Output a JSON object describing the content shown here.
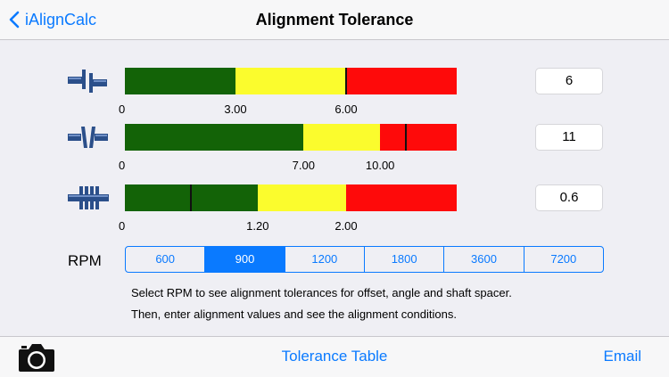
{
  "nav": {
    "back_label": "iAlignCalc",
    "title": "Alignment Tolerance"
  },
  "rows": [
    {
      "icon": "offset-coupling-icon",
      "min": 0,
      "max": 9.0,
      "thresholds": [
        3.0,
        6.0
      ],
      "tick_labels": [
        "0",
        "3.00",
        "6.00"
      ],
      "value": "6",
      "marker": 6
    },
    {
      "icon": "angle-coupling-icon",
      "min": 0,
      "max": 13.0,
      "thresholds": [
        7.0,
        10.0
      ],
      "tick_labels": [
        "0",
        "7.00",
        "10.00"
      ],
      "value": "11",
      "marker": 11
    },
    {
      "icon": "shaft-spacer-icon",
      "min": 0,
      "max": 3.0,
      "thresholds": [
        1.2,
        2.0
      ],
      "tick_labels": [
        "0",
        "1.20",
        "2.00"
      ],
      "value": "0.6",
      "marker": 0.6
    }
  ],
  "rpm": {
    "label": "RPM",
    "options": [
      "600",
      "900",
      "1200",
      "1800",
      "3600",
      "7200"
    ],
    "selected": "900"
  },
  "info": {
    "line1": "Select RPM to see alignment tolerances for offset, angle and shaft spacer.",
    "line2": "Then, enter alignment values and see the alignment conditions."
  },
  "toolbar": {
    "camera_icon": "camera-icon",
    "center_label": "Tolerance Table",
    "right_label": "Email"
  },
  "colors": {
    "accent": "#0a7aff",
    "good": "#136307",
    "warn": "#fbfc2d",
    "bad": "#fe0a0a"
  }
}
